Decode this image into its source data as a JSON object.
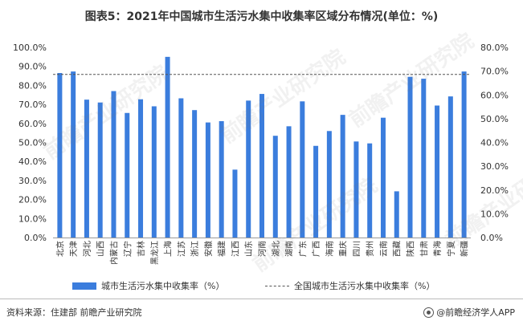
{
  "title": "图表5：2021年中国城市生活污水集中收集率区域分布情况(单位：%)",
  "legend": {
    "bar_label": "城市生活污水集中收集率（%）",
    "line_label": "全国城市生活污水集中收集率（%）"
  },
  "footer": {
    "source": "资料来源：住建部 前瞻产业研究院",
    "brand": "@前瞻经济学人APP"
  },
  "watermark": "前瞻产业研究院",
  "colors": {
    "bar": "#3b7ddd",
    "line": "#555555"
  },
  "chart_data": {
    "type": "bar",
    "title": "图表5：2021年中国城市生活污水集中收集率区域分布情况(单位：%)",
    "categories": [
      "北京",
      "天津",
      "河北",
      "山西",
      "内蒙古",
      "辽宁",
      "吉林",
      "黑龙江",
      "上海",
      "江苏",
      "浙江",
      "安徽",
      "福建",
      "江西",
      "山东",
      "河南",
      "湖北",
      "湖南",
      "广东",
      "广西",
      "海南",
      "重庆",
      "四川",
      "贵州",
      "云南",
      "西藏",
      "陕西",
      "甘肃",
      "青海",
      "宁夏",
      "新疆"
    ],
    "series": [
      {
        "name": "城市生活污水集中收集率（%）",
        "values": [
          86.5,
          87.3,
          72.5,
          71.0,
          77.0,
          65.5,
          72.7,
          69.0,
          95.0,
          73.2,
          67.0,
          60.5,
          61.2,
          35.7,
          72.0,
          75.5,
          53.5,
          58.5,
          71.6,
          48.2,
          56.0,
          64.5,
          50.5,
          49.5,
          63.0,
          24.3,
          84.5,
          83.5,
          69.4,
          74.2,
          87.3
        ]
      }
    ],
    "reference_line": {
      "name": "全国城市生活污水集中收集率（%）",
      "value": 68.6,
      "axis": "right"
    },
    "ylim": [
      0,
      100
    ],
    "y2lim": [
      0,
      80
    ],
    "yticks": [
      "0.0%",
      "10.0%",
      "20.0%",
      "30.0%",
      "40.0%",
      "50.0%",
      "60.0%",
      "70.0%",
      "80.0%",
      "90.0%",
      "100.0%"
    ],
    "y2ticks": [
      "0.0%",
      "10.0%",
      "20.0%",
      "30.0%",
      "40.0%",
      "50.0%",
      "60.0%",
      "70.0%",
      "80.0%"
    ],
    "grid": false,
    "legend_position": "bottom"
  }
}
